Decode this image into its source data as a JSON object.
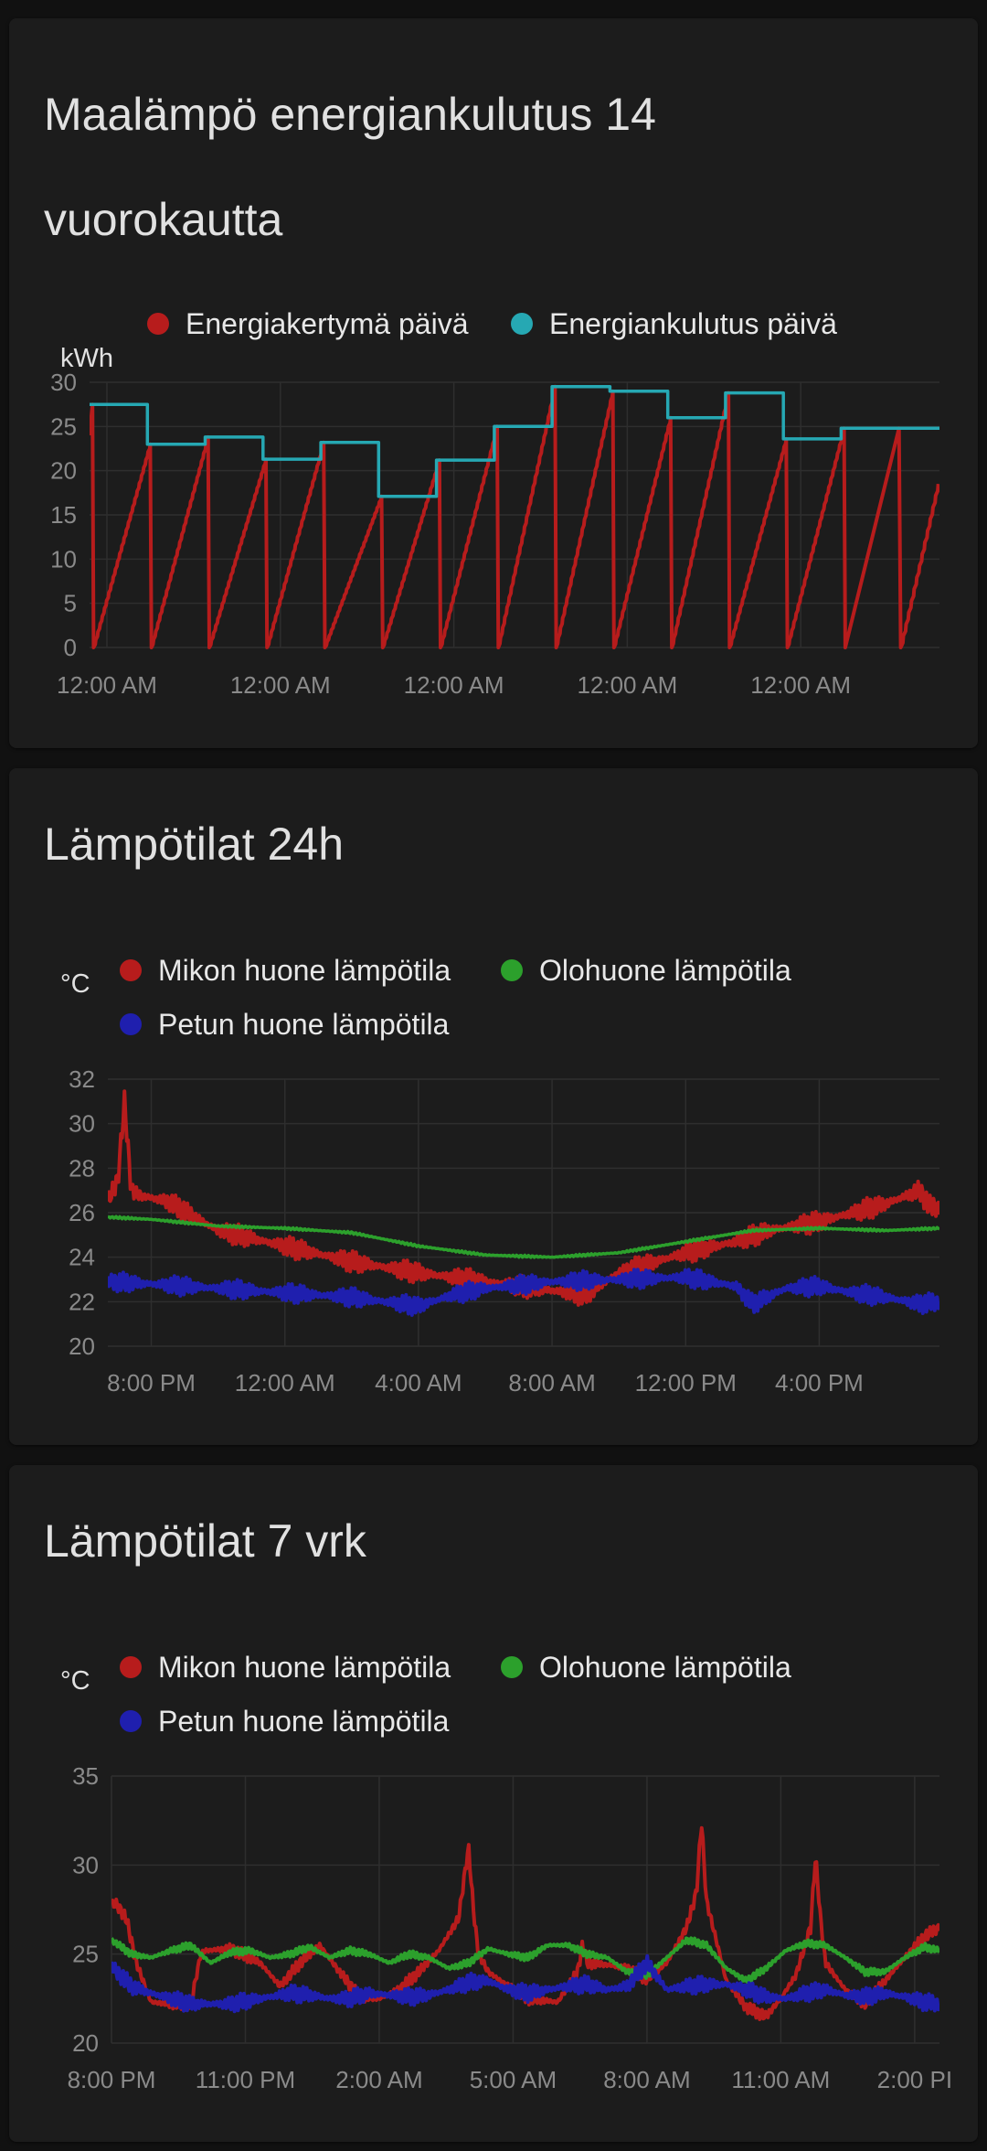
{
  "cards": [
    {
      "title_line1": "Maalämpö energiankulutus 14",
      "title_line2": "vuorokautta"
    },
    {
      "title": "Lämpötilat 24h"
    },
    {
      "title": "Lämpötilat 7 vrk"
    }
  ],
  "chart_data": [
    {
      "type": "line",
      "title": "Maalämpö energiankulutus 14 vuorokautta",
      "ylabel": "kWh",
      "ylim": [
        0,
        30
      ],
      "yticks": [
        0,
        5,
        10,
        15,
        20,
        25,
        30
      ],
      "xlim": [
        0,
        14.7
      ],
      "xticks": [
        {
          "x": 0.3,
          "label": "12:00 AM"
        },
        {
          "x": 3.3,
          "label": "12:00 AM"
        },
        {
          "x": 6.3,
          "label": "12:00 AM"
        },
        {
          "x": 9.3,
          "label": "12:00 AM"
        },
        {
          "x": 12.3,
          "label": "12:00 AM"
        }
      ],
      "grid": true,
      "legend_position": "top",
      "series": [
        {
          "name": "Energiakertymä päivä",
          "color": "#b71c1c",
          "style": "sawtooth",
          "start_value": 24,
          "current_value": 18.5,
          "daily_totals": [
            27.5,
            23,
            23.8,
            21.3,
            23.2,
            17.1,
            21.2,
            25,
            29.5,
            29,
            26,
            28.8,
            23.6,
            24.8
          ]
        },
        {
          "name": "Energiankulutus päivä",
          "color": "#26a8b3",
          "style": "step",
          "x": [
            0,
            1,
            2,
            3,
            4,
            5,
            6,
            7,
            8,
            9,
            10,
            11,
            12,
            13,
            14.7
          ],
          "values": [
            27.5,
            23,
            23.8,
            21.3,
            23.2,
            17.1,
            21.2,
            25,
            29.5,
            29,
            26,
            28.8,
            23.6,
            24.8,
            24.8
          ]
        }
      ]
    },
    {
      "type": "line",
      "title": "Lämpötilat 24h",
      "ylabel": "°C",
      "ylim": [
        20,
        32
      ],
      "yticks": [
        20,
        22,
        24,
        26,
        28,
        30,
        32
      ],
      "xlim": [
        18.7,
        43.6
      ],
      "xticks": [
        {
          "x": 20,
          "label": "8:00 PM"
        },
        {
          "x": 24,
          "label": "12:00 AM"
        },
        {
          "x": 28,
          "label": "4:00 AM"
        },
        {
          "x": 32,
          "label": "8:00 AM"
        },
        {
          "x": 36,
          "label": "12:00 PM"
        },
        {
          "x": 40,
          "label": "4:00 PM"
        }
      ],
      "grid": true,
      "legend_position": "top",
      "series": [
        {
          "name": "Mikon huone lämpötila",
          "color": "#b71c1c",
          "x": [
            18.7,
            19.0,
            19.2,
            19.4,
            19.6,
            20.5,
            22.0,
            24.0,
            26.0,
            28.0,
            30.0,
            32.0,
            33.0,
            34.0,
            36.0,
            37.5,
            38.5,
            40.0,
            42.0,
            43.0,
            43.3,
            43.6
          ],
          "values": [
            26.5,
            27.5,
            31.0,
            27.0,
            26.8,
            26.5,
            25.2,
            24.5,
            23.8,
            23.3,
            22.9,
            22.5,
            22.3,
            23.3,
            24.2,
            24.7,
            25.2,
            25.6,
            26.4,
            27.0,
            26.3,
            26.2
          ],
          "oscillation": 0.5
        },
        {
          "name": "Olohuone lämpötila",
          "color": "#2ca02c",
          "x": [
            18.7,
            20.0,
            22.0,
            24.0,
            26.0,
            28.0,
            30.0,
            32.0,
            34.0,
            36.0,
            38.0,
            40.0,
            42.0,
            43.6
          ],
          "values": [
            25.8,
            25.7,
            25.4,
            25.3,
            25.1,
            24.5,
            24.1,
            24.0,
            24.2,
            24.7,
            25.2,
            25.3,
            25.2,
            25.3
          ],
          "oscillation": 0.05
        },
        {
          "name": "Petun huone lämpötila",
          "color": "#1f1fae",
          "x": [
            18.7,
            20.0,
            22.0,
            24.0,
            26.0,
            28.0,
            29.0,
            30.0,
            32.0,
            34.0,
            36.0,
            37.5,
            38.0,
            39.0,
            40.0,
            41.0,
            42.0,
            43.0,
            43.6
          ],
          "values": [
            22.9,
            22.8,
            22.6,
            22.4,
            22.2,
            21.8,
            22.3,
            22.6,
            22.9,
            23.0,
            23.1,
            22.7,
            21.9,
            22.6,
            22.7,
            22.4,
            22.2,
            21.9,
            22.0
          ],
          "oscillation": 0.45
        }
      ]
    },
    {
      "type": "line",
      "title": "Lämpötilat 7 vrk",
      "ylabel": "°C",
      "ylim": [
        20,
        35
      ],
      "yticks": [
        20,
        25,
        30,
        35
      ],
      "xlim": [
        0,
        167
      ],
      "xticks": [
        {
          "x": 0,
          "label": "8:00 PM"
        },
        {
          "x": 27,
          "label": "11:00 PM"
        },
        {
          "x": 54,
          "label": "2:00 AM"
        },
        {
          "x": 81,
          "label": "5:00 AM"
        },
        {
          "x": 108,
          "label": "8:00 AM"
        },
        {
          "x": 135,
          "label": "11:00 AM"
        },
        {
          "x": 162,
          "label": "2:00 PI"
        }
      ],
      "grid": true,
      "legend_position": "top",
      "series": [
        {
          "name": "Mikon huone lämpötila",
          "color": "#b71c1c",
          "x": [
            0,
            1,
            3,
            5,
            8,
            12,
            16,
            18,
            19,
            24,
            30,
            34,
            38,
            42,
            46,
            50,
            54,
            58,
            62,
            66,
            70,
            72,
            73,
            74,
            76,
            80,
            84,
            90,
            94,
            95,
            96,
            100,
            104,
            108,
            112,
            116,
            118,
            119,
            120,
            124,
            128,
            132,
            135,
            138,
            141,
            142,
            143,
            144,
            148,
            152,
            156,
            160,
            164,
            167
          ],
          "values": [
            27.8,
            27.8,
            27.0,
            24.5,
            22.3,
            22.2,
            22.2,
            25.0,
            25.2,
            25.3,
            24.5,
            23.2,
            24.5,
            25.5,
            24.0,
            22.6,
            22.5,
            23.0,
            24.0,
            25.2,
            27.0,
            31.0,
            27.5,
            25.0,
            24.0,
            23.2,
            22.5,
            22.3,
            24.0,
            25.5,
            24.5,
            24.4,
            24.2,
            23.6,
            24.5,
            26.5,
            28.5,
            32.5,
            28.0,
            23.5,
            22.0,
            21.5,
            22.5,
            23.8,
            26.5,
            30.5,
            27.0,
            24.5,
            23.0,
            22.2,
            23.5,
            24.8,
            26.0,
            26.5
          ],
          "oscillation": 0.35
        },
        {
          "name": "Olohuone lämpötila",
          "color": "#2ca02c",
          "x": [
            0,
            4,
            8,
            12,
            16,
            20,
            24,
            28,
            32,
            36,
            40,
            44,
            48,
            52,
            56,
            60,
            64,
            68,
            72,
            76,
            80,
            84,
            88,
            92,
            96,
            100,
            104,
            108,
            112,
            116,
            120,
            124,
            128,
            132,
            136,
            140,
            144,
            148,
            152,
            156,
            160,
            164,
            167
          ],
          "values": [
            25.8,
            25.0,
            24.8,
            25.2,
            25.5,
            24.5,
            25.1,
            25.2,
            24.8,
            25.0,
            25.4,
            24.8,
            25.2,
            25.0,
            24.5,
            25.0,
            24.8,
            24.2,
            24.5,
            25.3,
            25.0,
            24.8,
            25.5,
            25.5,
            25.0,
            24.8,
            24.0,
            23.8,
            24.8,
            25.8,
            25.5,
            24.2,
            23.5,
            24.2,
            25.2,
            25.6,
            25.5,
            24.8,
            24.0,
            24.0,
            24.8,
            25.4,
            25.2
          ],
          "oscillation": 0.2
        },
        {
          "name": "Petun huone lämpötila",
          "color": "#1f1fae",
          "x": [
            0,
            4,
            8,
            12,
            16,
            20,
            24,
            28,
            32,
            36,
            40,
            44,
            48,
            52,
            56,
            60,
            64,
            68,
            72,
            76,
            80,
            84,
            88,
            92,
            96,
            100,
            104,
            108,
            112,
            116,
            120,
            124,
            128,
            132,
            136,
            140,
            144,
            148,
            152,
            156,
            160,
            164,
            167
          ],
          "values": [
            24.3,
            23.2,
            22.8,
            22.5,
            22.2,
            22.2,
            22.2,
            22.4,
            22.6,
            22.8,
            22.7,
            22.5,
            22.5,
            22.8,
            22.7,
            22.6,
            22.7,
            23.0,
            23.4,
            23.5,
            23.0,
            22.8,
            23.0,
            23.2,
            23.3,
            23.0,
            23.2,
            24.5,
            23.0,
            23.2,
            23.3,
            23.3,
            23.0,
            22.6,
            22.5,
            22.8,
            23.0,
            22.7,
            22.6,
            22.8,
            22.6,
            22.3,
            22.2
          ],
          "oscillation": 0.5
        }
      ]
    }
  ]
}
